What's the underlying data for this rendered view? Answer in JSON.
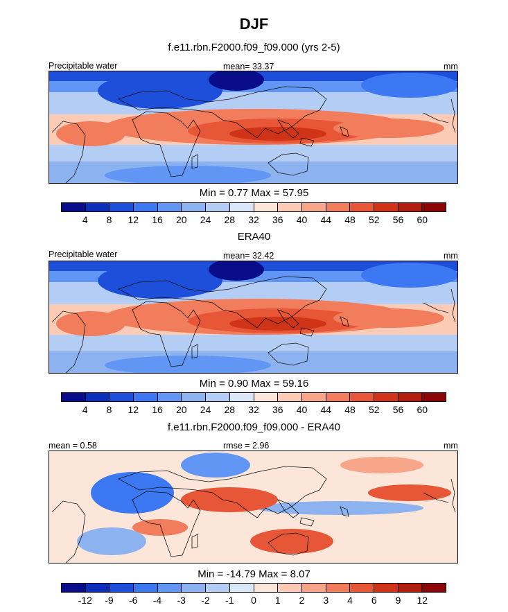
{
  "title": "DJF",
  "panels": [
    {
      "title": "f.e11.rbn.F2000.f09_f09.000 (yrs 2-5)",
      "left_label": "Precipitable water",
      "center_label": "mean=  33.37",
      "right_label": "mm",
      "minmax": "Min =   0.77 Max =  57.95",
      "scale": "abs"
    },
    {
      "title": "ERA40",
      "left_label": "Precipitable water",
      "center_label": "mean=  32.42",
      "right_label": "mm",
      "minmax": "Min =   0.90 Max =  59.16",
      "scale": "abs"
    },
    {
      "title": "f.e11.rbn.F2000.f09_f09.000 - ERA40",
      "left_label": "mean =   0.58",
      "center_label": "rmse =   2.96",
      "right_label": "mm",
      "minmax": "Min = -14.79 Max =   8.07",
      "scale": "diff"
    }
  ],
  "colorbars": {
    "abs": {
      "labels": [
        "4",
        "8",
        "12",
        "16",
        "20",
        "24",
        "28",
        "32",
        "36",
        "40",
        "44",
        "48",
        "52",
        "56",
        "60"
      ],
      "colors": [
        "#0a0d8a",
        "#0b2fb8",
        "#1d4fdb",
        "#3b78f2",
        "#6196f4",
        "#8db2f0",
        "#b4cdf5",
        "#dae7f8",
        "#fbe6d9",
        "#fbcbb5",
        "#f8a68a",
        "#f27d5c",
        "#e75636",
        "#d03418",
        "#b11e0e",
        "#8b0606"
      ]
    },
    "diff": {
      "labels": [
        "-12",
        "-9",
        "-6",
        "-4",
        "-3",
        "-2",
        "-1",
        "0",
        "1",
        "2",
        "3",
        "4",
        "6",
        "9",
        "12"
      ],
      "colors": [
        "#0a0d8a",
        "#0b2fb8",
        "#1d4fdb",
        "#3b78f2",
        "#6196f4",
        "#8db2f0",
        "#b4cdf5",
        "#dae7f8",
        "#fbe6d9",
        "#fbcbb5",
        "#f8a68a",
        "#f27d5c",
        "#e75636",
        "#d03418",
        "#b11e0e",
        "#8b0606"
      ]
    }
  }
}
